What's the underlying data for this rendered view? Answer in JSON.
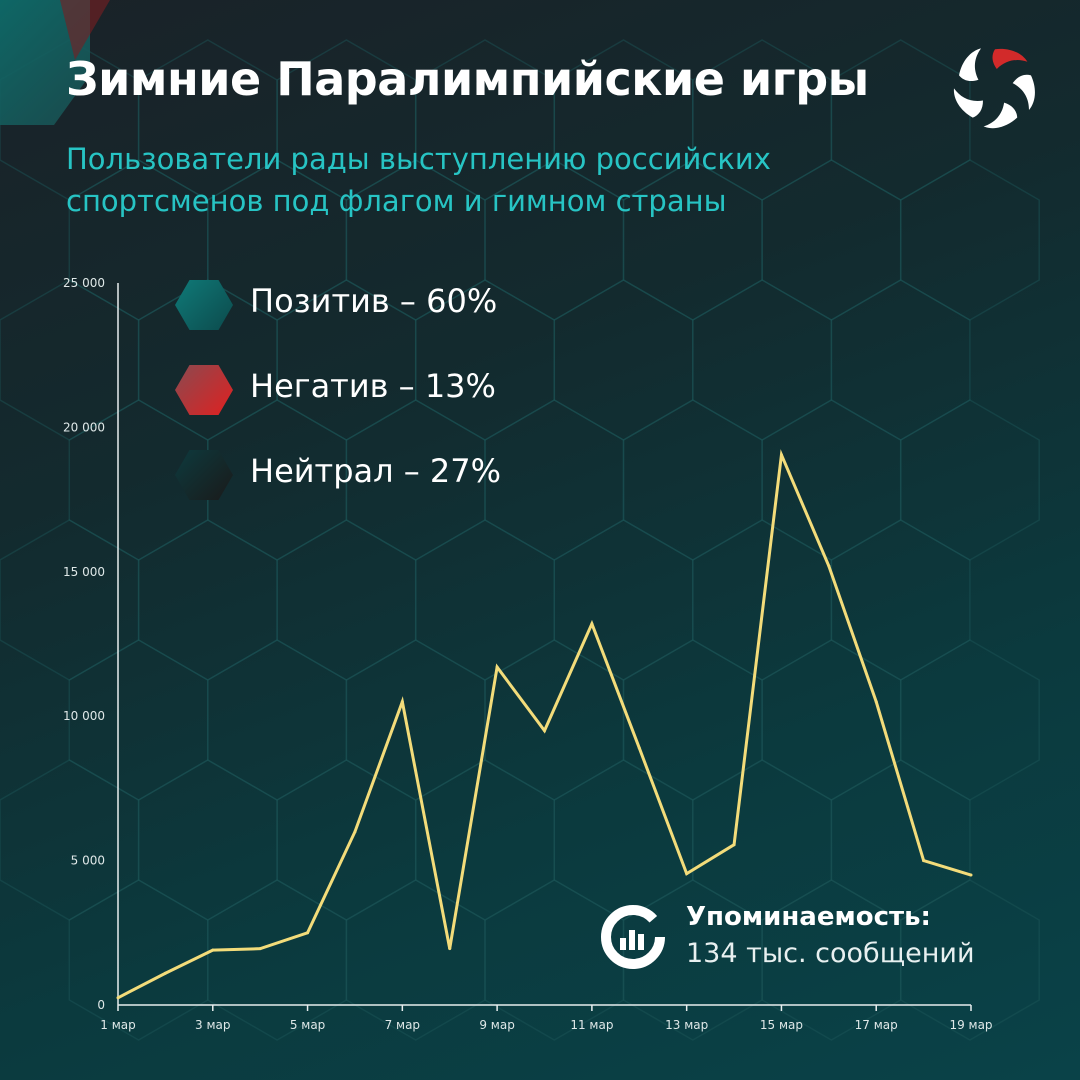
{
  "header": {
    "title": "Зимние Паралимпийские игры",
    "subtitle": "Пользователи рады выступлению российских спортсменов под флагом и гимном страны"
  },
  "legend": [
    {
      "label": "Позитив – 60%",
      "color": "#0f6f6e"
    },
    {
      "label": "Негатив – 13%",
      "color": "#d62a2a"
    },
    {
      "label": "Нейтрал – 27%",
      "color": "#102a2e"
    }
  ],
  "stat": {
    "title": "Упоминаемость:",
    "value": "134 тыс. сообщений",
    "icon": "chart-donut-icon"
  },
  "logo": {
    "icon": "pinwheel-logo-icon",
    "accent": "#d22a2a"
  },
  "chart_data": {
    "type": "line",
    "x": [
      "1 мар",
      "2 мар",
      "3 мар",
      "4 мар",
      "5 мар",
      "6 мар",
      "7 мар",
      "8 мар",
      "9 мар",
      "10 мар",
      "11 мар",
      "12 мар",
      "13 мар",
      "14 мар",
      "15 мар",
      "16 мар",
      "17 мар",
      "18 мар",
      "19 мар"
    ],
    "values": [
      250,
      1100,
      1900,
      1950,
      2500,
      6000,
      10500,
      1950,
      11700,
      9500,
      13200,
      8900,
      4550,
      5550,
      19050,
      15200,
      10500,
      5000,
      4500
    ],
    "xticks": [
      "1 мар",
      "3 мар",
      "5 мар",
      "7 мар",
      "9 мар",
      "11 мар",
      "13 мар",
      "15 мар",
      "17 мар",
      "19 мар"
    ],
    "yticks": [
      "0",
      "5 000",
      "10 000",
      "15 000",
      "20 000",
      "25 000"
    ],
    "ylim": [
      0,
      25000
    ],
    "line_color": "#f3dc7a",
    "grid": false
  }
}
